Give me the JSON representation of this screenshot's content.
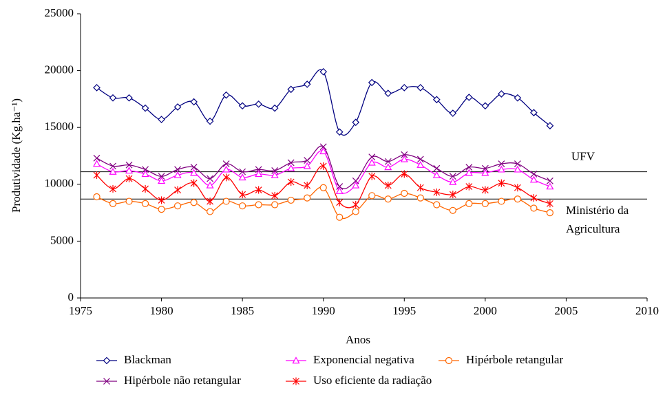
{
  "chart_data": {
    "type": "line",
    "x_label": "Anos",
    "y_label": "Produtividade (Kg.ha⁻¹)",
    "x": [
      1976,
      1977,
      1978,
      1979,
      1980,
      1981,
      1982,
      1983,
      1984,
      1985,
      1986,
      1987,
      1988,
      1989,
      1990,
      1991,
      1992,
      1993,
      1994,
      1995,
      1996,
      1997,
      1998,
      1999,
      2000,
      2001,
      2002,
      2003,
      2004
    ],
    "series": [
      {
        "name": "Blackman",
        "color": "#000080",
        "marker": "diamond",
        "values": [
          18500,
          17600,
          17600,
          16700,
          15700,
          16800,
          17250,
          15550,
          17850,
          16900,
          17050,
          16700,
          18350,
          18800,
          19900,
          14600,
          15450,
          18950,
          18000,
          18500,
          18500,
          17450,
          16250,
          17650,
          16900,
          17950,
          17600,
          16300,
          15150
        ]
      },
      {
        "name": "Exponencial negativa",
        "color": "#ff00ff",
        "marker": "triangle",
        "values": [
          11800,
          11100,
          11200,
          10900,
          10300,
          10800,
          11000,
          9900,
          11300,
          10600,
          10900,
          10800,
          11400,
          11600,
          12900,
          9400,
          9900,
          11900,
          11500,
          12200,
          11700,
          10800,
          10200,
          11000,
          11000,
          11300,
          11300,
          10400,
          9800
        ]
      },
      {
        "name": "Hipérbole retangular",
        "color": "#ff6600",
        "marker": "circle",
        "values": [
          8900,
          8300,
          8500,
          8300,
          7800,
          8100,
          8400,
          7600,
          8500,
          8100,
          8200,
          8200,
          8600,
          8800,
          9700,
          7100,
          7600,
          9000,
          8700,
          9200,
          8800,
          8200,
          7700,
          8300,
          8300,
          8500,
          8700,
          7900,
          7500
        ]
      },
      {
        "name": "Hipérbole não retangular",
        "color": "#800080",
        "marker": "x",
        "values": [
          12300,
          11600,
          11700,
          11300,
          10700,
          11300,
          11500,
          10500,
          11800,
          11100,
          11300,
          11200,
          11900,
          12100,
          13300,
          9800,
          10300,
          12400,
          12000,
          12600,
          12200,
          11400,
          10700,
          11500,
          11400,
          11800,
          11800,
          10900,
          10300
        ]
      },
      {
        "name": "Uso eficiente da radiação",
        "color": "#ff0000",
        "marker": "asterisk",
        "values": [
          10800,
          9600,
          10500,
          9600,
          8600,
          9500,
          10100,
          8500,
          10600,
          9100,
          9500,
          9000,
          10200,
          9900,
          11600,
          8400,
          8200,
          10700,
          9900,
          10900,
          9700,
          9300,
          9100,
          9800,
          9500,
          10100,
          9700,
          8800,
          8300
        ]
      }
    ],
    "reference_lines": [
      {
        "value": 11100,
        "label": [
          "UFV"
        ]
      },
      {
        "value": 8700,
        "label": [
          "Ministério da",
          "Agricultura"
        ]
      }
    ],
    "xlim": [
      1975,
      2010
    ],
    "xticks": [
      1975,
      1980,
      1985,
      1990,
      1995,
      2000,
      2005,
      2010
    ],
    "ylim": [
      0,
      25000
    ],
    "yticks": [
      0,
      5000,
      10000,
      15000,
      20000,
      25000
    ],
    "smooth": true,
    "legend": "bottom"
  }
}
